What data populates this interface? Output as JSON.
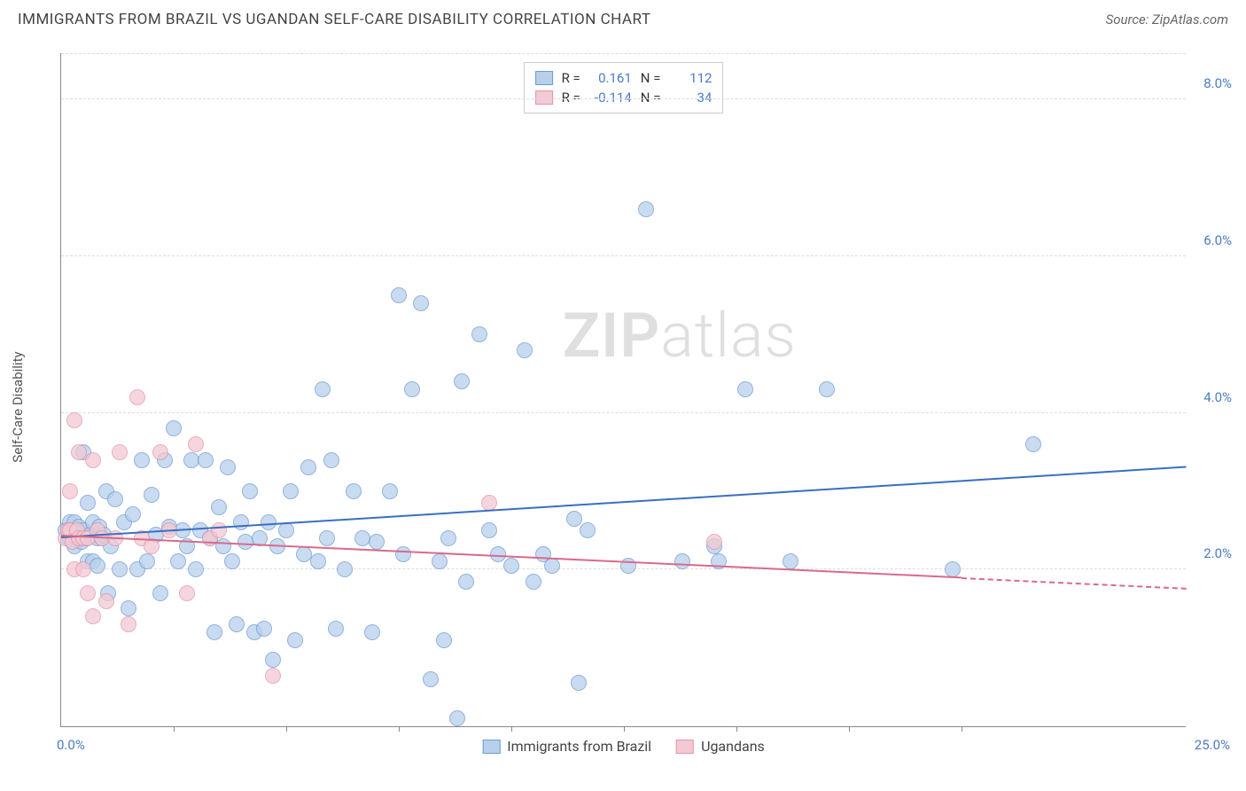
{
  "header": {
    "title": "IMMIGRANTS FROM BRAZIL VS UGANDAN SELF-CARE DISABILITY CORRELATION CHART",
    "source": "Source: ZipAtlas.com"
  },
  "chart": {
    "type": "scatter",
    "ylabel": "Self-Care Disability",
    "watermark_bold": "ZIP",
    "watermark_light": "atlas",
    "xlim": [
      0,
      25
    ],
    "ylim": [
      0,
      8.6
    ],
    "x_axis": {
      "start_label": "0.0%",
      "end_label": "25.0%",
      "tick_positions": [
        2.5,
        5,
        7.5,
        10,
        12.5,
        15,
        17.5,
        20
      ]
    },
    "y_axis": {
      "ticks": [
        2.0,
        4.0,
        6.0,
        8.0
      ],
      "tick_labels": [
        "2.0%",
        "4.0%",
        "6.0%",
        "8.0%"
      ]
    },
    "grid_color": "#dddddd",
    "background_color": "#ffffff",
    "axis_label_color": "#4a7bc8",
    "series": [
      {
        "name": "Immigrants from Brazil",
        "fill": "#b8d0ec",
        "stroke": "#6c9bd1",
        "marker_radius": 9,
        "marker_opacity": 0.75,
        "stats": {
          "R": "0.161",
          "N": "112"
        },
        "trend": {
          "color": "#3a6fc0",
          "x1": 0,
          "y1": 2.4,
          "x2": 25,
          "y2": 3.3,
          "solid_until_x": 25
        },
        "points": [
          [
            0.1,
            2.5
          ],
          [
            0.15,
            2.4
          ],
          [
            0.2,
            2.4
          ],
          [
            0.2,
            2.6
          ],
          [
            0.25,
            2.35
          ],
          [
            0.3,
            2.6
          ],
          [
            0.3,
            2.3
          ],
          [
            0.35,
            2.45
          ],
          [
            0.4,
            2.4
          ],
          [
            0.4,
            2.55
          ],
          [
            0.45,
            2.35
          ],
          [
            0.5,
            2.5
          ],
          [
            0.5,
            3.5
          ],
          [
            0.55,
            2.4
          ],
          [
            0.6,
            2.85
          ],
          [
            0.6,
            2.1
          ],
          [
            0.65,
            2.45
          ],
          [
            0.7,
            2.6
          ],
          [
            0.7,
            2.1
          ],
          [
            0.8,
            2.4
          ],
          [
            0.8,
            2.05
          ],
          [
            0.85,
            2.55
          ],
          [
            0.9,
            2.4
          ],
          [
            0.95,
            2.45
          ],
          [
            1.0,
            3.0
          ],
          [
            1.05,
            1.7
          ],
          [
            1.1,
            2.3
          ],
          [
            1.2,
            2.9
          ],
          [
            1.3,
            2.0
          ],
          [
            1.4,
            2.6
          ],
          [
            1.5,
            1.5
          ],
          [
            1.6,
            2.7
          ],
          [
            1.7,
            2.0
          ],
          [
            1.8,
            3.4
          ],
          [
            1.9,
            2.1
          ],
          [
            2.0,
            2.95
          ],
          [
            2.1,
            2.45
          ],
          [
            2.2,
            1.7
          ],
          [
            2.3,
            3.4
          ],
          [
            2.4,
            2.55
          ],
          [
            2.5,
            3.8
          ],
          [
            2.6,
            2.1
          ],
          [
            2.7,
            2.5
          ],
          [
            2.8,
            2.3
          ],
          [
            2.9,
            3.4
          ],
          [
            3.0,
            2.0
          ],
          [
            3.1,
            2.5
          ],
          [
            3.2,
            3.4
          ],
          [
            3.3,
            2.4
          ],
          [
            3.4,
            1.2
          ],
          [
            3.5,
            2.8
          ],
          [
            3.6,
            2.3
          ],
          [
            3.7,
            3.3
          ],
          [
            3.8,
            2.1
          ],
          [
            3.9,
            1.3
          ],
          [
            4.0,
            2.6
          ],
          [
            4.1,
            2.35
          ],
          [
            4.2,
            3.0
          ],
          [
            4.3,
            1.2
          ],
          [
            4.4,
            2.4
          ],
          [
            4.5,
            1.25
          ],
          [
            4.6,
            2.6
          ],
          [
            4.7,
            0.85
          ],
          [
            4.8,
            2.3
          ],
          [
            5.0,
            2.5
          ],
          [
            5.1,
            3.0
          ],
          [
            5.2,
            1.1
          ],
          [
            5.4,
            2.2
          ],
          [
            5.5,
            3.3
          ],
          [
            5.7,
            2.1
          ],
          [
            5.8,
            4.3
          ],
          [
            5.9,
            2.4
          ],
          [
            6.0,
            3.4
          ],
          [
            6.1,
            1.25
          ],
          [
            6.3,
            2.0
          ],
          [
            6.5,
            3.0
          ],
          [
            6.7,
            2.4
          ],
          [
            6.9,
            1.2
          ],
          [
            7.0,
            2.35
          ],
          [
            7.3,
            3.0
          ],
          [
            7.5,
            5.5
          ],
          [
            7.6,
            2.2
          ],
          [
            7.8,
            4.3
          ],
          [
            8.0,
            5.4
          ],
          [
            8.2,
            0.6
          ],
          [
            8.4,
            2.1
          ],
          [
            8.5,
            1.1
          ],
          [
            8.6,
            2.4
          ],
          [
            8.8,
            0.1
          ],
          [
            8.9,
            4.4
          ],
          [
            9.0,
            1.85
          ],
          [
            9.3,
            5.0
          ],
          [
            9.5,
            2.5
          ],
          [
            9.7,
            2.2
          ],
          [
            10.0,
            2.05
          ],
          [
            10.3,
            4.8
          ],
          [
            10.5,
            1.85
          ],
          [
            10.7,
            2.2
          ],
          [
            10.9,
            2.05
          ],
          [
            11.4,
            2.65
          ],
          [
            11.5,
            0.55
          ],
          [
            11.7,
            2.5
          ],
          [
            12.6,
            2.05
          ],
          [
            13.0,
            6.6
          ],
          [
            13.8,
            2.1
          ],
          [
            14.5,
            2.3
          ],
          [
            14.6,
            2.1
          ],
          [
            15.2,
            4.3
          ],
          [
            16.2,
            2.1
          ],
          [
            17.0,
            4.3
          ],
          [
            19.8,
            2.0
          ],
          [
            21.6,
            3.6
          ]
        ]
      },
      {
        "name": "Ugandans",
        "fill": "#f3c9d3",
        "stroke": "#e494aa",
        "marker_radius": 9,
        "marker_opacity": 0.75,
        "stats": {
          "R": "-0.114",
          "N": "34"
        },
        "trend": {
          "color": "#d96a8b",
          "x1": 0,
          "y1": 2.42,
          "x2": 25,
          "y2": 1.75,
          "solid_until_x": 20
        },
        "points": [
          [
            0.1,
            2.4
          ],
          [
            0.15,
            2.5
          ],
          [
            0.2,
            2.5
          ],
          [
            0.2,
            3.0
          ],
          [
            0.25,
            2.35
          ],
          [
            0.3,
            3.9
          ],
          [
            0.3,
            2.0
          ],
          [
            0.35,
            2.5
          ],
          [
            0.4,
            2.4
          ],
          [
            0.4,
            3.5
          ],
          [
            0.5,
            2.4
          ],
          [
            0.5,
            2.0
          ],
          [
            0.6,
            2.4
          ],
          [
            0.6,
            1.7
          ],
          [
            0.7,
            3.4
          ],
          [
            0.7,
            1.4
          ],
          [
            0.8,
            2.5
          ],
          [
            0.9,
            2.4
          ],
          [
            1.0,
            1.6
          ],
          [
            1.2,
            2.4
          ],
          [
            1.3,
            3.5
          ],
          [
            1.5,
            1.3
          ],
          [
            1.7,
            4.2
          ],
          [
            1.8,
            2.4
          ],
          [
            2.0,
            2.3
          ],
          [
            2.2,
            3.5
          ],
          [
            2.4,
            2.5
          ],
          [
            2.8,
            1.7
          ],
          [
            3.0,
            3.6
          ],
          [
            3.3,
            2.4
          ],
          [
            3.5,
            2.5
          ],
          [
            4.7,
            0.65
          ],
          [
            9.5,
            2.85
          ],
          [
            14.5,
            2.35
          ]
        ]
      }
    ],
    "stats_legend": {
      "r_label": "R =",
      "n_label": "N ="
    },
    "bottom_legend": {
      "series1_label": "Immigrants from Brazil",
      "series2_label": "Ugandans"
    }
  }
}
